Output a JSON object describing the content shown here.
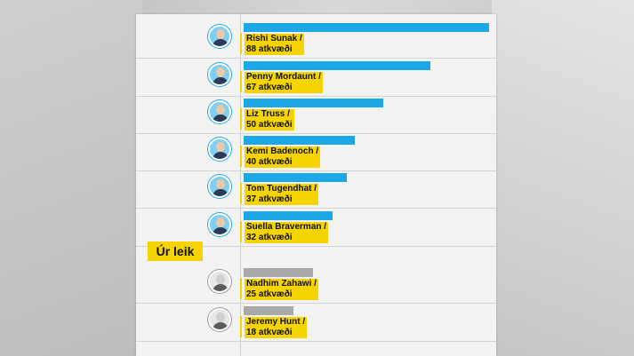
{
  "chart_data": {
    "type": "bar",
    "orientation": "horizontal",
    "categories": [
      "Rishi Sunak",
      "Penny Mordaunt",
      "Liz Truss",
      "Kemi Badenoch",
      "Tom Tugendhat",
      "Suella Braverman",
      "Nadhim Zahawi",
      "Jeremy Hunt"
    ],
    "values": [
      88,
      67,
      50,
      40,
      37,
      32,
      25,
      18
    ],
    "labels": [
      [
        "Rishi Sunak /",
        "88 atkvæði"
      ],
      [
        "Penny Mordaunt /",
        "67 atkvæði"
      ],
      [
        "Liz Truss /",
        "50 atkvæði"
      ],
      [
        "Kemi Badenoch /",
        "40 atkvæði"
      ],
      [
        "Tom Tugendhat /",
        "37 atkvæði"
      ],
      [
        "Suella Braverman /",
        "32 atkvæði"
      ],
      [
        "Nadhim Zahawi /",
        "25 atkvæði"
      ],
      [
        "Jeremy Hunt /",
        "18 atkvæði"
      ]
    ],
    "status": [
      "in",
      "in",
      "in",
      "in",
      "in",
      "in",
      "out",
      "out"
    ],
    "xlim": [
      0,
      88
    ],
    "grid": false,
    "legend": "none"
  },
  "out_label": "Úr leik",
  "colors": {
    "bar_in": "#1ca7e6",
    "bar_out": "#a9a9a9",
    "highlight": "#f5d400",
    "avatar_in_ring": "#1ca7e6",
    "avatar_out_ring": "#9a9a9a"
  }
}
